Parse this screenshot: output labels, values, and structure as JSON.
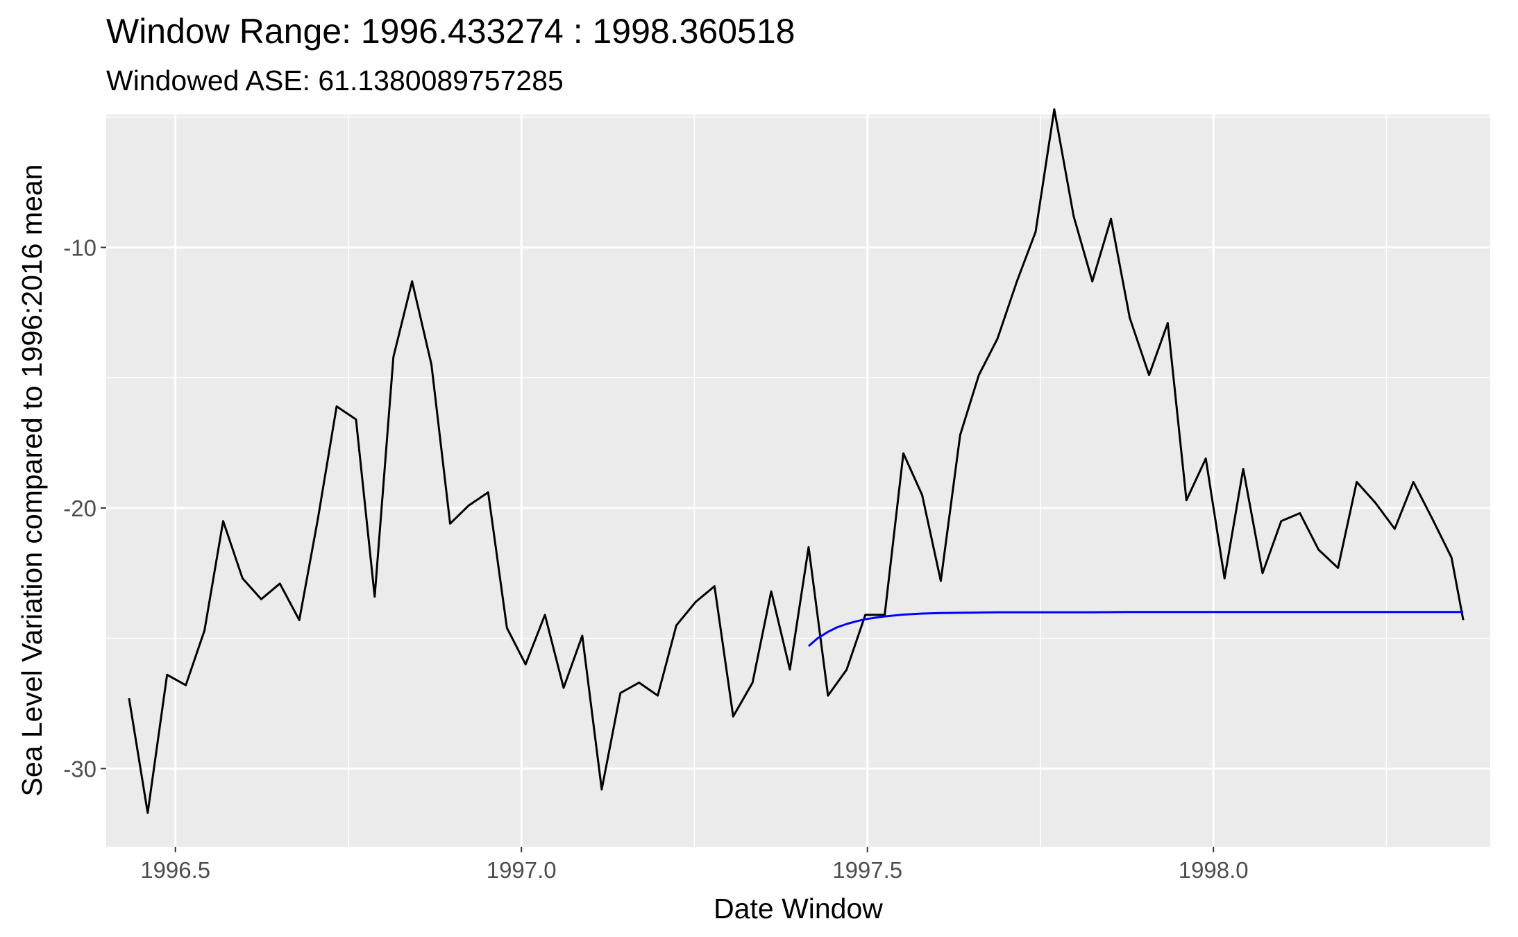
{
  "chart_data": {
    "type": "line",
    "title": "Window Range: 1996.433274 : 1998.360518",
    "subtitle": "Windowed ASE: 61.1380089757285",
    "xlabel": "Date Window",
    "ylabel": "Sea Level Variation compared to 1996:2016 mean",
    "xlim": [
      1996.4,
      1998.4
    ],
    "ylim": [
      -33,
      -4.9
    ],
    "x_ticks": [
      1996.5,
      1997.0,
      1997.5,
      1998.0
    ],
    "x_tick_labels": [
      "1996.5",
      "1997.0",
      "1997.5",
      "1998.0"
    ],
    "y_ticks": [
      -10,
      -20,
      -30
    ],
    "y_tick_labels": [
      "-10",
      "-20",
      "-30"
    ],
    "grid": true,
    "series": [
      {
        "color": "#000000",
        "x": [
          1996.433,
          1996.46,
          1996.488,
          1996.515,
          1996.542,
          1996.569,
          1996.597,
          1996.624,
          1996.651,
          1996.679,
          1996.706,
          1996.733,
          1996.761,
          1996.788,
          1996.815,
          1996.842,
          1996.87,
          1996.897,
          1996.924,
          1996.952,
          1996.979,
          1997.006,
          1997.034,
          1997.061,
          1997.088,
          1997.116,
          1997.143,
          1997.17,
          1997.197,
          1997.224,
          1997.252,
          1997.279,
          1997.306,
          1997.334,
          1997.361,
          1997.388,
          1997.415,
          1997.443,
          1997.47,
          1997.497,
          1997.525,
          1997.552,
          1997.579,
          1997.606,
          1997.634,
          1997.661,
          1997.688,
          1997.716,
          1997.743,
          1997.77,
          1997.798,
          1997.825,
          1997.852,
          1997.879,
          1997.907,
          1997.934,
          1997.961,
          1997.989,
          1998.016,
          1998.043,
          1998.071,
          1998.098,
          1998.125,
          1998.152,
          1998.18,
          1998.207,
          1998.234,
          1998.262,
          1998.289,
          1998.316,
          1998.344,
          1998.361
        ],
        "y": [
          -27.3,
          -31.7,
          -26.4,
          -26.8,
          -24.7,
          -20.5,
          -22.7,
          -23.5,
          -22.9,
          -24.3,
          -20.4,
          -16.1,
          -16.6,
          -23.4,
          -14.2,
          -11.3,
          -14.5,
          -20.6,
          -19.9,
          -19.4,
          -24.6,
          -26.0,
          -24.1,
          -26.9,
          -24.9,
          -30.8,
          -27.1,
          -26.7,
          -27.2,
          -24.5,
          -23.6,
          -23.0,
          -28.0,
          -26.7,
          -23.2,
          -26.2,
          -21.5,
          -27.2,
          -26.2,
          -24.1,
          -24.1,
          -17.9,
          -19.5,
          -22.8,
          -17.2,
          -14.9,
          -13.5,
          -11.3,
          -9.4,
          -4.7,
          -8.8,
          -11.3,
          -8.9,
          -12.7,
          -14.9,
          -12.9,
          -19.7,
          -18.1,
          -22.7,
          -18.5,
          -22.5,
          -20.5,
          -20.2,
          -21.6,
          -22.3,
          -19.0,
          -19.8,
          -20.8,
          -19.0,
          -20.4,
          -21.9,
          -24.3
        ]
      },
      {
        "color": "#0000ff",
        "x": [
          1997.415,
          1997.428,
          1997.443,
          1997.456,
          1997.47,
          1997.484,
          1997.497,
          1997.511,
          1997.525,
          1997.552,
          1997.579,
          1997.606,
          1997.634,
          1997.661,
          1997.688,
          1997.716,
          1997.77,
          1997.825,
          1997.879,
          1997.934,
          1997.989,
          1998.043,
          1998.098,
          1998.152,
          1998.207,
          1998.262,
          1998.316,
          1998.361
        ],
        "y": [
          -25.3,
          -25.0,
          -24.75,
          -24.58,
          -24.45,
          -24.35,
          -24.27,
          -24.21,
          -24.16,
          -24.09,
          -24.05,
          -24.03,
          -24.02,
          -24.01,
          -24.0,
          -24.0,
          -24.0,
          -24.0,
          -23.99,
          -23.99,
          -23.99,
          -23.99,
          -23.99,
          -23.99,
          -23.99,
          -23.99,
          -23.99,
          -23.99
        ]
      }
    ]
  }
}
